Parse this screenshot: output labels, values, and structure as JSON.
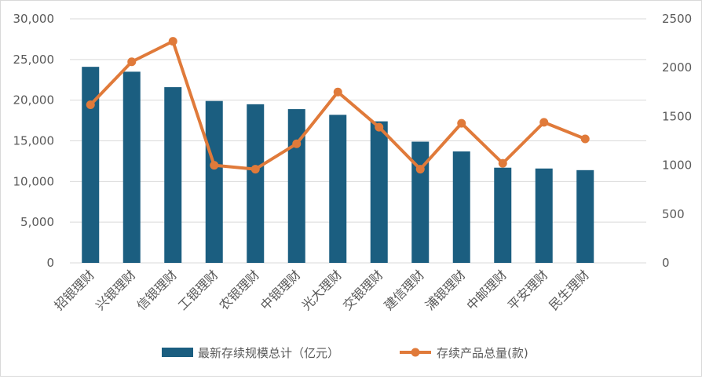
{
  "chart_data": {
    "type": "bar",
    "title": "",
    "categories": [
      "招银理财",
      "兴银理财",
      "信银理财",
      "工银理财",
      "农银理财",
      "中银理财",
      "光大理财",
      "交银理财",
      "建信理财",
      "浦银理财",
      "中邮理财",
      "平安理财",
      "民生理财"
    ],
    "series": [
      {
        "name": "最新存续规模总计（亿元）",
        "type": "bar",
        "axis": "left",
        "color": "#1b5e80",
        "values": [
          24100,
          23500,
          21600,
          19900,
          19500,
          18900,
          18200,
          17400,
          14900,
          13700,
          11700,
          11600,
          11400
        ]
      },
      {
        "name": "存续产品总量(款)",
        "type": "line",
        "axis": "right",
        "color": "#e07a3a",
        "values": [
          1620,
          2060,
          2270,
          1000,
          960,
          1220,
          1750,
          1390,
          960,
          1430,
          1020,
          1440,
          1270
        ]
      }
    ],
    "y_left": {
      "min": 0,
      "max": 30000,
      "ticks": [
        "0",
        "5,000",
        "10,000",
        "15,000",
        "20,000",
        "25,000",
        "30,000"
      ]
    },
    "y_right": {
      "min": 0,
      "max": 2500,
      "ticks": [
        "0",
        "500",
        "1000",
        "1500",
        "2000",
        "2500"
      ]
    },
    "grid": true,
    "legend": "bottom"
  }
}
